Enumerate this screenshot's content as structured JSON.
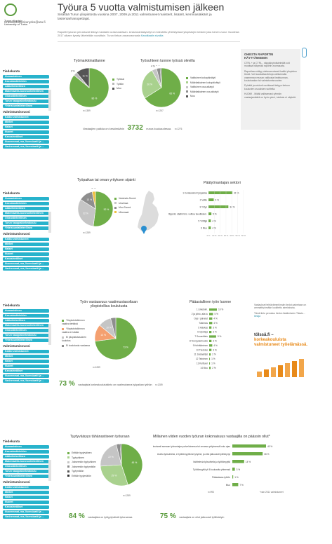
{
  "header": {
    "logo_lines": [
      "Turun yliopisto",
      "University of Turku"
    ],
    "tagline": "Uraseuranta.ekonyrke@utu.fi",
    "title": "Työura 5 vuotta valmistumisen jälkeen",
    "subtitle": "Sisältää Turun yliopistosta vuosina 2007, 2009 ja 2011 valmistuneet maisterit, lisäärit, kemmasiäikärit ja lastentarhanopettajat.",
    "intro": "Raportti työuran perustuvat lieksyn tuloksiiin uraseurantaan. Uraseurantakyselyt on toteutettu yhteistyössä yliopistojen kesken joka toinen vuosi. Vuodesta 2017 alkaen kysely lähetetään vuosittain. Turun tietoa uraseurannasta",
    "intro_link": "Kanditaatin sivuilta"
  },
  "nav_sections": [
    {
      "top_label": "Tiedekunta",
      "items": [
        "Humanistinen",
        "Kasvatustieteiden",
        "Lääketieteellinen",
        "Matemaattis-luonnontieteellinen",
        "Oikeustieteellinen",
        "Turun kauppakorkeakoulu",
        "Yhteiskuntatieteellinen"
      ],
      "bottom_label": "Valmistumisvuosi",
      "bottom_items": [
        "Kaikki valmistuneet",
        "Miehet",
        "Naiset",
        "Nuoret",
        "Kansainväliset",
        "Nuoremmat, ma, lisensiaatti ja ...",
        "Vanhemmat, ma, lisensiaatti ja ..."
      ]
    },
    {
      "top_label": "Tiedekunta",
      "items": [
        "Humanistinen",
        "Kasvatustieteiden",
        "Lääketieteellinen",
        "Matemaattis-luonnontieteellinen",
        "Oikeustieteellinen",
        "Turun kauppakorkeakoulu",
        "Yhteiskuntatieteellinen"
      ],
      "bottom_label": "Valmistumisvuosi",
      "bottom_items": [
        "Kaikki valmistuneet",
        "Miehet",
        "Naiset",
        "Nuoret",
        "Kansainväliset",
        "Nuoremmat, ma, lisensiaatti ja ...",
        "Vanhemmat, ma, lisensiaatti ja ..."
      ]
    },
    {
      "top_label": "Tiedekunta",
      "items": [
        "Humanistinen",
        "Kasvatustieteiden",
        "Lääketieteellinen",
        "Matemaattis-luonnontieteellinen",
        "Oikeustieteellinen",
        "Turun kauppakorkeakoulu",
        "Yhteiskuntatieteellinen"
      ],
      "bottom_label": "Valmistumisvuosi",
      "bottom_items": [
        "Kaikki valmistuneet",
        "Miehet",
        "Naiset",
        "Nuoret",
        "Kansainväliset",
        "Nuoremmat, ma, lisensiaatti ja ...",
        "Vanhemmat, ma, lisensiaatti ja ..."
      ]
    },
    {
      "top_label": "Tiedekunta",
      "items": [
        "Humanistinen",
        "Kasvatustieteiden",
        "Lääketieteellinen",
        "Matemaattis-luonnontieteellinen",
        "Oikeustieteellinen",
        "Turun kauppakorkeakoulu",
        "Yhteiskuntatieteellinen"
      ],
      "bottom_label": "Valmistumisvuosi",
      "bottom_items": [
        "Kaikki valmistuneet",
        "Miehet",
        "Naiset",
        "Nuoret",
        "Kansainväliset",
        "Nuoremmat, ma, lisensiaatti ja ...",
        "Vanhemmat, ma, lisensiaatti ja ..."
      ]
    }
  ],
  "section1": {
    "pie1_title": "Työmarkkinatilanne",
    "pie1_n": "n=1389",
    "pie2_title": "Työsuhteen luonne työssä olevilla",
    "pie2_n": "n=1257",
    "stat_text_before": "Vastaajien palkka on keskimäärin",
    "stat_value": "3732",
    "stat_text_after": "euroa kuukaudessa.",
    "stat_n": "n=1276",
    "note_title": "OHEISTA RAPORTIN KÄYTTÄMISEEN",
    "note_paragraphs": [
      "CTRL + ja CTRL - näppäinyhdistelmillä voit muuttaa näkymää raportin zoomausta.",
      "Raportissa näkyy oletusarvoisesti kaikki yliopiston tiedot. Voit suodattaa tietoja valitsemalla vasemman reunan valikosta tiedekunnan, koulutusalan tai valmistumisvuoden.",
      "Pylväät ja sektorit osoittavat tiettyyn tietoon kuuluvien osuuksien suhteita.",
      "HUOM! - Mikäli valitsemasi ryhmän vastaajamäärä on hyvin pieni, tuloksia ei näytetä."
    ],
    "pie1_legend": [
      "Työssä",
      "Työtön",
      "Muu"
    ],
    "pie2_legend": [
      "Vakituinen kokopäivätyö",
      "Määräaikainen kokopäivätyö",
      "Vakituinen osa-aikatyö",
      "Määräaikainen osa-aikatyö",
      "Muu"
    ],
    "pie1_labels": [
      "86 %",
      "3 %",
      "11 %"
    ],
    "pie2_labels": [
      "66 %",
      "26 %",
      "4 %",
      "3 %",
      "1 %"
    ]
  },
  "section2": {
    "pie_title": "Työpaikan tai oman yrityksen sijainti",
    "pie_legend": [
      "Varsinais-Suomi",
      "Uusimaa",
      "Muu Suomi",
      "Ulkomaat"
    ],
    "pie_labels": [
      "52 %",
      "32 %",
      "13 %",
      "3 %"
    ],
    "pie_n": "n=1289",
    "bar_title": "Päätyönantajan sektori",
    "bar_n": "n=1289",
    "bar_axis_ticks": [
      "0 %",
      "10 %",
      "20 %",
      "30 %",
      "40 %",
      "50 %",
      "60 %"
    ]
  },
  "section3": {
    "pie_title": "Työn vastaavuus vaatimustasoltaan yliopistollisa koulutusta",
    "pie_legend": [
      "Yliopistotutkinnon vaativa tehtävä",
      "Yliopistotutkinnon vaativa eri alalla",
      "Ei yliopistotasoinen koulutus",
      "Ei koulutusta vastaava"
    ],
    "pie_labels": [
      "73 %",
      "13 %",
      "10 %",
      "4 %"
    ],
    "pie_n": "n=1289",
    "stat_value": "73 %",
    "stat_text": "vastaajista korkeakoulututkinto on vaatimuksena työpaikan työhön",
    "stat_n": "n=1289",
    "bar_title": "Pääasiallinen työn luonne",
    "bar_n": "n=1289",
    "side_text_1": "Vastaukset tehtävämerkinnän tiedot painetaan on ammattiryhmään luokitettu aineistossa.",
    "side_text_2": "Tämä tieto perustuu tiedon lisäämiseen Tilasto...",
    "side_link": "tietoja",
    "promo_text_1": "tölssä.fi –",
    "promo_text_2": "korkeakouluista valmistuneet työelämässä."
  },
  "section4": {
    "pie_title": "Tyytyväisyys tähänastiseen työuraan",
    "pie_legend": [
      "Erittäin tyytyväinen",
      "Tyytyväinen",
      "Jokseenkin tyytyväinen",
      "Jokseenkin tyytymätön",
      "Tyytymätön",
      "Erittäin tyytymätön"
    ],
    "pie_labels": [
      "45 %",
      "29 %",
      "22 %",
      "3 %",
      "1 %",
      "0 %"
    ],
    "pie_n": "n=1289",
    "bar_title": "Millainen viiden vuoden työuran kokonaisuus vastaajilla on päässin ollut*",
    "bar_n": "n=993",
    "footnote": "*vain 2011 valmistuneet",
    "stat1_value": "84 %",
    "stat1_text": "vastaajista on työtyytyväisiä työuraansa",
    "stat2_value": "75 %",
    "stat2_text": "vastaajista on ollut jatkuvasti työllistetyin"
  },
  "chart_data": [
    {
      "type": "pie",
      "categories": [
        "Työssä",
        "Työtön",
        "Muu"
      ],
      "values": [
        86,
        3,
        11
      ],
      "title": "Työmarkkinatilanne"
    },
    {
      "type": "pie",
      "categories": [
        "Vakituinen kokopäivätyö",
        "Määräaikainen kokopäivätyö",
        "Vakituinen osa-aikatyö",
        "Määräaikainen osa-aikatyö",
        "Muu"
      ],
      "values": [
        66,
        26,
        4,
        3,
        1
      ],
      "title": "Työsuhteen luonne työssä olevilla"
    },
    {
      "type": "pie",
      "categories": [
        "Varsinais-Suomi",
        "Uusimaa",
        "Muu Suomi",
        "Ulkomaat"
      ],
      "values": [
        52,
        32,
        13,
        3
      ],
      "title": "Työpaikan tai oman yrityksen sijainti"
    },
    {
      "type": "bar",
      "title": "Päätyönantajan sektori",
      "categories": [
        "1 Kuntasektori työpaikka",
        "2 Valtio",
        "3 Yritys",
        "4 Järjestö, säätiö tms. voittoa tavoittelem.",
        "5 Yrittäjä",
        "6 Muu"
      ],
      "values": [
        41,
        9,
        34,
        5,
        4,
        4
      ],
      "ylim": [
        0,
        60
      ]
    },
    {
      "type": "pie",
      "categories": [
        "Yliopistotutkinnon vaativa tehtävä",
        "Yliopistotutkinnon vaativa eri alalla",
        "Ei yliopistotasoinen koulutus",
        "Ei koulutusta vastaava"
      ],
      "values": [
        73,
        13,
        10,
        4
      ],
      "title": "Työn vastaavuus vaatimustasoltaan yliopistollisa koulutusta"
    },
    {
      "type": "bar",
      "title": "Pääasiallinen työn luonne",
      "categories": [
        "1 Liiketoim.",
        "2 ja johto, alla tu",
        "Ope / palvelut",
        "Tutkimus",
        "5 Asiakas",
        "6 Opettaja",
        "7 Suunnittelu",
        "8 Terveydenhuolto",
        "9 Kehittäminen",
        "10 Tiedotus",
        "11 Sosiaalityö",
        "12 Tekninen",
        "13 Kulttuuri",
        "14 Muu"
      ],
      "values": [
        10,
        5,
        4,
        4,
        3,
        3,
        9,
        3,
        4,
        3,
        2,
        1,
        1,
        2
      ],
      "ylim": [
        0,
        50
      ]
    },
    {
      "type": "pie",
      "categories": [
        "Erittäin tyytyväinen",
        "Tyytyväinen",
        "Jokseenkin tyytyväinen",
        "Jokseenkin tyytymätön",
        "Tyytymätön",
        "Erittäin tyytymätön"
      ],
      "values": [
        45,
        29,
        22,
        3,
        1,
        0
      ],
      "title": "Tyytyväisyys tähänastiseen työuraan"
    },
    {
      "type": "bar",
      "title": "Millainen viiden vuoden työuran kokonaisuus vastaajilla on päässin ollut*",
      "categories": [
        "Pitkäjaksoisesti samaan työnantajan palveluksessa tai omassa yrityksessä koko ajan",
        "Useita työsuhteita, ei työttömyyttä tai lyhyesti, ja ollut jatkuvasti työllistynyt",
        "Vaihtelevia työsuhteita ja työttömyyttä",
        "Työttömyyttä yli 6 kuukautta yhteensä",
        "Pääasiassa työtön",
        "Muu"
      ],
      "values": [
        40,
        36,
        14,
        3,
        1,
        7
      ],
      "ylim": [
        0,
        50
      ]
    }
  ]
}
